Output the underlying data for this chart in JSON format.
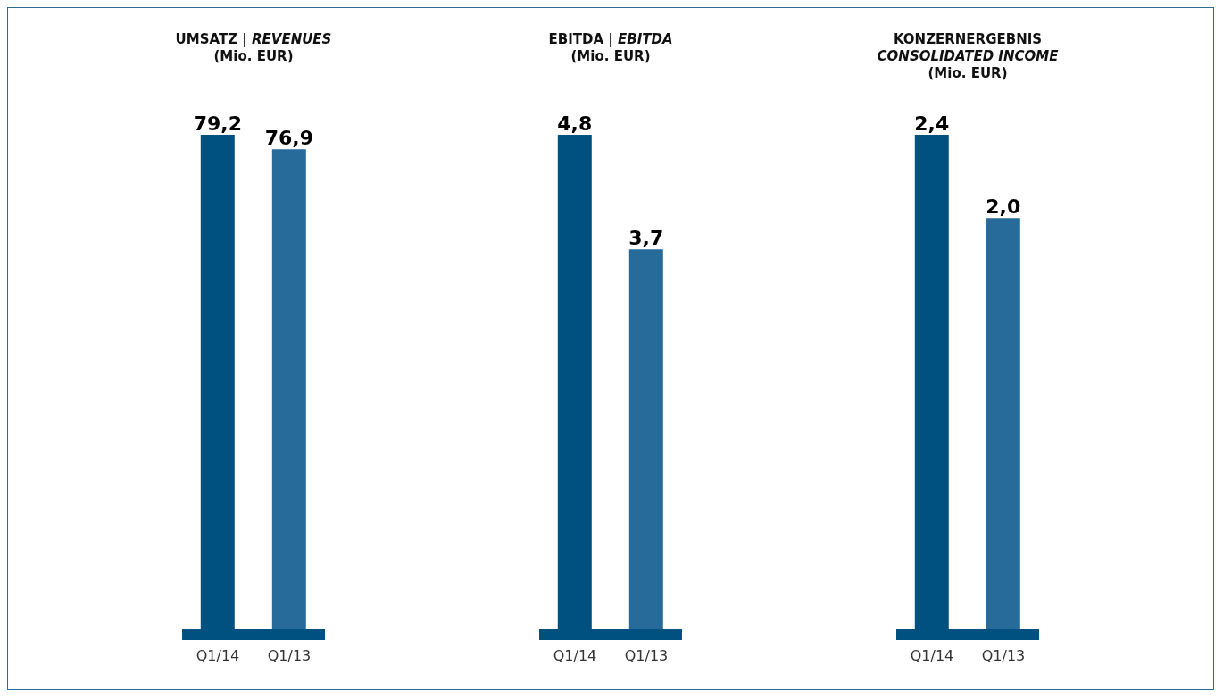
{
  "chart_data": [
    {
      "type": "bar",
      "title": "UMSATZ | REVENUES",
      "subtitle": "(Mio. EUR)",
      "categories": [
        "Q1/14",
        "Q1/13"
      ],
      "values": [
        79.2,
        76.9
      ],
      "value_labels": [
        "79,2",
        "76,9"
      ],
      "colors": [
        "#00517f",
        "#266b9a"
      ],
      "grid": false,
      "legend": false
    },
    {
      "type": "bar",
      "title": "EBITDA | EBITDA",
      "subtitle": "(Mio. EUR)",
      "categories": [
        "Q1/14",
        "Q1/13"
      ],
      "values": [
        4.8,
        3.7
      ],
      "value_labels": [
        "4,8",
        "3,7"
      ],
      "colors": [
        "#00517f",
        "#266b9a"
      ],
      "grid": false,
      "legend": false
    },
    {
      "type": "bar",
      "title": "KONZERNERGEBNIS\nCONSOLIDATED INCOME",
      "subtitle": "(Mio. EUR)",
      "categories": [
        "Q1/14",
        "Q1/13"
      ],
      "values": [
        2.4,
        2.0
      ],
      "value_labels": [
        "2,4",
        "2,0"
      ],
      "colors": [
        "#00517f",
        "#266b9a"
      ],
      "grid": false,
      "legend": false
    }
  ]
}
